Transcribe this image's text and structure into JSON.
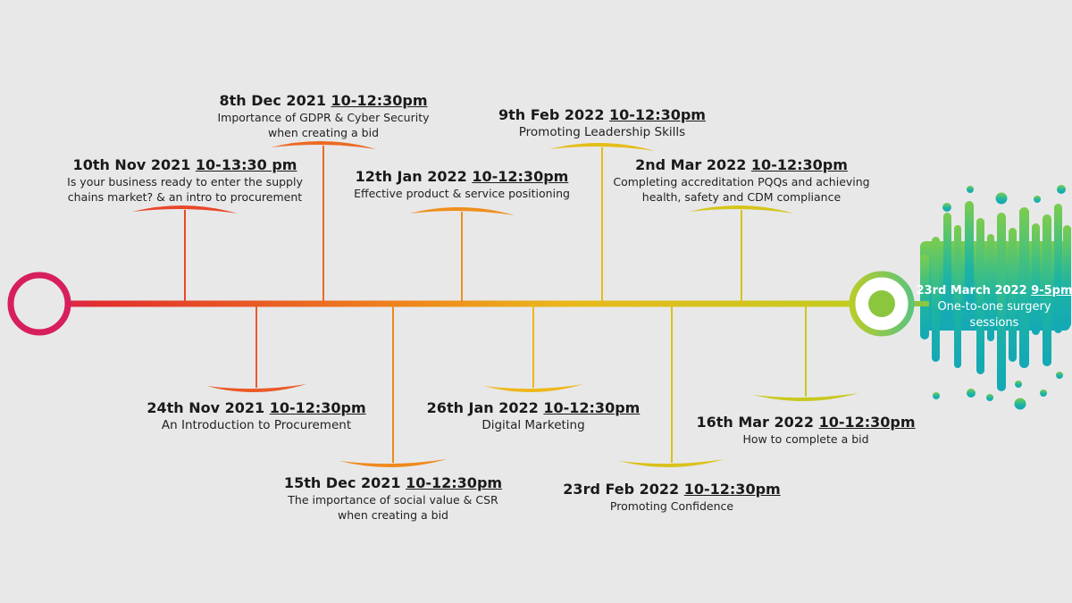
{
  "events": [
    {
      "date": "10th Nov 2021",
      "time": "10-13:30 pm",
      "desc": [
        "Is your business ready to enter the supply",
        "chains market? & an intro to procurement"
      ],
      "color": "#e8482a"
    },
    {
      "date": "24th Nov 2021",
      "time": "10-12:30pm",
      "desc": [
        "An Introduction to Procurement"
      ],
      "color": "#ea5a27"
    },
    {
      "date": "8th Dec 2021",
      "time": "10-12:30pm",
      "desc": [
        "Importance of GDPR & Cyber Security",
        "when creating a bid"
      ],
      "color": "#ec6a24"
    },
    {
      "date": "15th Dec 2021",
      "time": "10-12:30pm",
      "desc": [
        "The importance of social value & CSR",
        "when creating a bid"
      ],
      "color": "#ef8a1c"
    },
    {
      "date": "12th Jan 2022",
      "time": "10-12:30pm",
      "desc": [
        "Effective product & service positioning"
      ],
      "color": "#ef8f1c"
    },
    {
      "date": "26th Jan 2022",
      "time": "10-12:30pm",
      "desc": [
        "Digital Marketing"
      ],
      "color": "#efb71b"
    },
    {
      "date": "9th Feb 2022",
      "time": "10-12:30pm",
      "desc": [
        "Promoting Leadership Skills"
      ],
      "color": "#e5bd1a"
    },
    {
      "date": "23rd Feb 2022",
      "time": "10-12:30pm",
      "desc": [
        "Promoting Confidence"
      ],
      "color": "#d9c21b"
    },
    {
      "date": "2nd Mar 2022",
      "time": "10-12:30pm",
      "desc": [
        "Completing accreditation PQQs and achieving",
        "health, safety and CDM compliance"
      ],
      "color": "#d4c51c"
    },
    {
      "date": "16th Mar 2022",
      "time": "10-12:30pm",
      "desc": [
        "How to complete a bid"
      ],
      "color": "#c9c81e"
    }
  ],
  "final_event": {
    "date": "23rd March 2022",
    "time": "9-5pm",
    "desc": [
      "One-to-one surgery",
      "sessions"
    ]
  },
  "colors": {
    "start": "#d61f5c",
    "red": "#e3302c",
    "orange": "#ef8a1c",
    "yellow": "#e3bf1a",
    "lime": "#c4cc1f",
    "green": "#8cc63f",
    "teal": "#17aeb0",
    "background": "#e8e8e9"
  }
}
